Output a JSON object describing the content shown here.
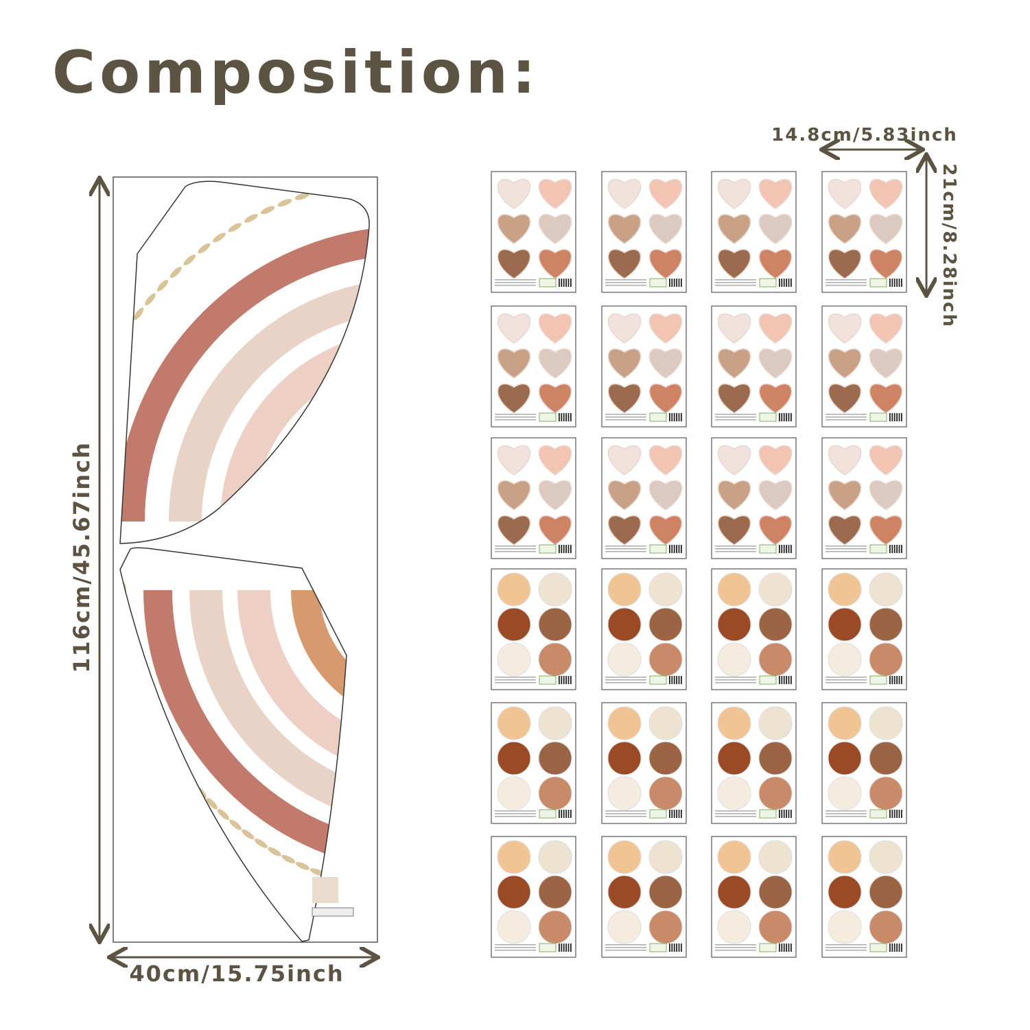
{
  "title": "Composition:",
  "dimensions": {
    "sheet_width": "14.8cm/5.83inch",
    "sheet_height": "21cm/8.28inch",
    "panel_height": "116cm/45.67inch",
    "panel_width": "40cm/15.75inch"
  }
}
